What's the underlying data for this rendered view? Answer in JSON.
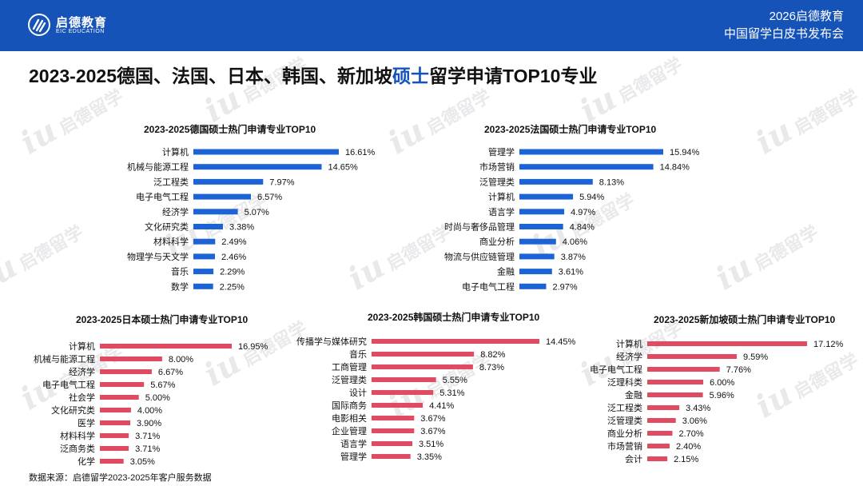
{
  "header": {
    "logo_cn": "启德教育",
    "logo_en": "EIC EDUCATION",
    "event_year": "2026启德教育",
    "event_name": "中国留学白皮书发布会"
  },
  "title": {
    "pre": "2023-2025德国、法国、日本、韩国、新加坡",
    "highlight": "硕士",
    "post": "留学申请TOP10专业"
  },
  "watermark": {
    "mark": "iu",
    "text": "启德留学",
    "text_en": "EIC EDUCATION"
  },
  "source": "数据来源：启德留学2023-2025年客户服务数据",
  "colors": {
    "blue": "#1c63d6",
    "red": "#e04b61",
    "header": "#1553b9"
  },
  "chart_data": [
    {
      "id": "germany",
      "type": "bar",
      "orientation": "horizontal",
      "title": "2023-2025德国硕士热门申请专业TOP10",
      "categories": [
        "计算机",
        "机械与能源工程",
        "泛工程类",
        "电子电气工程",
        "经济学",
        "文化研究类",
        "材料科学",
        "物理学与天文学",
        "音乐",
        "数学"
      ],
      "values": [
        16.61,
        14.65,
        7.97,
        6.57,
        5.07,
        3.38,
        2.49,
        2.46,
        2.29,
        2.25
      ],
      "unit": "%",
      "color": "blue"
    },
    {
      "id": "france",
      "type": "bar",
      "orientation": "horizontal",
      "title": "2023-2025法国硕士热门申请专业TOP10",
      "categories": [
        "管理学",
        "市场营销",
        "泛管理类",
        "计算机",
        "语言学",
        "时尚与奢侈品管理",
        "商业分析",
        "物流与供应链管理",
        "金融",
        "电子电气工程"
      ],
      "values": [
        15.94,
        14.84,
        8.13,
        5.94,
        4.97,
        4.84,
        4.06,
        3.87,
        3.61,
        2.97
      ],
      "unit": "%",
      "color": "blue"
    },
    {
      "id": "japan",
      "type": "bar",
      "orientation": "horizontal",
      "title": "2023-2025日本硕士热门申请专业TOP10",
      "categories": [
        "计算机",
        "机械与能源工程",
        "经济学",
        "电子电气工程",
        "社会学",
        "文化研究类",
        "医学",
        "材料科学",
        "泛商务类",
        "化学"
      ],
      "values": [
        16.95,
        8.0,
        6.67,
        5.67,
        5.0,
        4.0,
        3.9,
        3.71,
        3.71,
        3.05
      ],
      "unit": "%",
      "color": "red"
    },
    {
      "id": "korea",
      "type": "bar",
      "orientation": "horizontal",
      "title": "2023-2025韩国硕士热门申请专业TOP10",
      "categories": [
        "传播学与媒体研究",
        "音乐",
        "工商管理",
        "泛管理类",
        "设计",
        "国际商务",
        "电影相关",
        "企业管理",
        "语言学",
        "管理学"
      ],
      "values": [
        14.45,
        8.82,
        8.73,
        5.55,
        5.31,
        4.41,
        3.67,
        3.67,
        3.51,
        3.35
      ],
      "unit": "%",
      "color": "red"
    },
    {
      "id": "singapore",
      "type": "bar",
      "orientation": "horizontal",
      "title": "2023-2025新加坡硕士热门申请专业TOP10",
      "categories": [
        "计算机",
        "经济学",
        "电子电气工程",
        "泛理科类",
        "金融",
        "泛工程类",
        "泛管理类",
        "商业分析",
        "市场营销",
        "会计"
      ],
      "values": [
        17.12,
        9.59,
        7.76,
        6.0,
        5.96,
        3.43,
        3.06,
        2.7,
        2.4,
        2.15
      ],
      "unit": "%",
      "color": "red"
    }
  ]
}
